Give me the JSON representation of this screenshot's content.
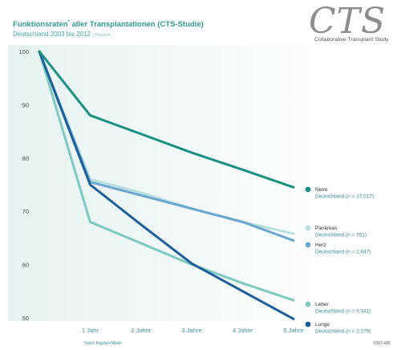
{
  "header": {
    "title": "Funktionsraten",
    "title_mark": "*",
    "title_rest": " aller Transplantationen (CTS-Studie)",
    "subtitle": "Deutschland 2003 bis 2012",
    "unit": "| Prozent",
    "logo": "CTS",
    "logo_sub": "Collaborative Transplant Study"
  },
  "footnote": "*nach Kaplan-Meier",
  "code": "DSO 430",
  "colors": {
    "title": "#2e9c94",
    "axis_text": "#4a4a4a",
    "xtick": "#3a8fa6",
    "band": "#e6f3f1"
  },
  "chart_data": {
    "type": "line",
    "title": "Funktionsraten* aller Transplantationen (CTS-Studie)",
    "xlabel": "",
    "ylabel": "",
    "x": [
      0,
      1,
      2,
      3,
      4,
      5
    ],
    "x_ticklabels": [
      "1 Jahr",
      "2 Jahre",
      "3 Jahre",
      "4 Jahre",
      "5 Jahre"
    ],
    "y_ticks": [
      50,
      60,
      70,
      80,
      90,
      100
    ],
    "ylim": [
      50,
      100
    ],
    "xlim": [
      0,
      5
    ],
    "grid": false,
    "legend_position": "right",
    "series": [
      {
        "name": "Niere",
        "detail": "Deutschland (n = 17.017)",
        "color": "#1a9080",
        "values": [
          100,
          88,
          84.5,
          81,
          77.8,
          74.5
        ]
      },
      {
        "name": "Pankreas",
        "detail": "Deutschland (n = 761)",
        "color": "#b7dfe0",
        "values": [
          100,
          76,
          73.5,
          70.5,
          68,
          65.8
        ]
      },
      {
        "name": "Herz",
        "detail": "Deutschland (n = 2.647)",
        "color": "#6aa6cf",
        "values": [
          100,
          75.5,
          73,
          70.5,
          68,
          64.5
        ]
      },
      {
        "name": "Leber",
        "detail": "Deutschland (n = 9.341)",
        "color": "#7ec9c0",
        "values": [
          100,
          68,
          64,
          60,
          56.5,
          53.3
        ]
      },
      {
        "name": "Lunge",
        "detail": "Deutschland (n = 2.279)",
        "color": "#1e5f99",
        "values": [
          100,
          75,
          67.5,
          60.2,
          55,
          49.8
        ]
      }
    ]
  }
}
